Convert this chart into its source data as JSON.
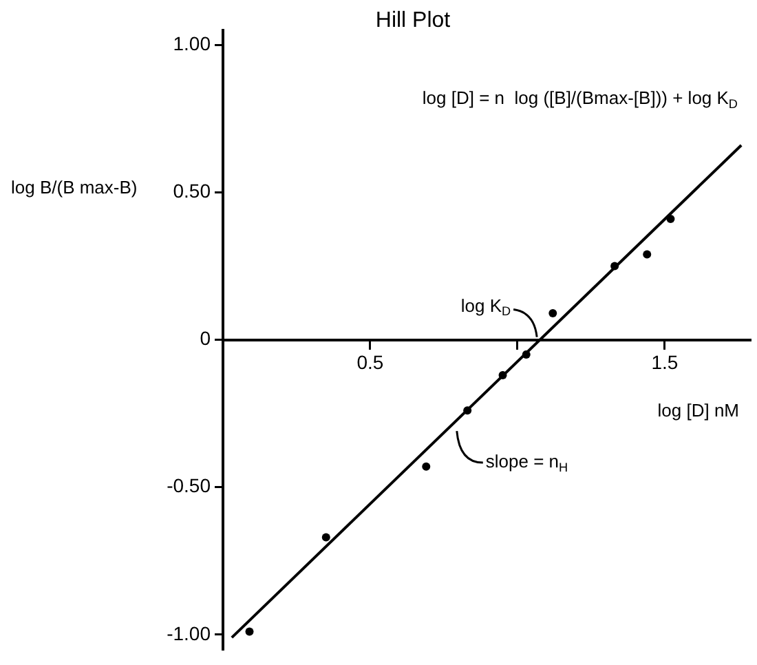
{
  "chart_data": {
    "type": "scatter",
    "title": "Hill Plot",
    "xlabel": "log [D] nM",
    "ylabel": "log B/(B max-B)",
    "annotations": [
      "log [D] = n  log ([B]/(Bmax-[B])) + log K$_{D}$",
      {
        "text": "log K$_{D}$",
        "x": 1.08,
        "y": 0
      },
      {
        "text": "slope = n$_{H}$",
        "x": 0.78,
        "y": -0.3
      }
    ],
    "series": [
      {
        "color": "#000000",
        "marker": "circle",
        "x": [
          0.09,
          0.35,
          0.69,
          0.83,
          0.95,
          1.03,
          1.12,
          1.33,
          1.44,
          1.52
        ],
        "values": [
          -0.99,
          -0.67,
          -0.43,
          -0.24,
          -0.12,
          -0.05,
          0.09,
          0.25,
          0.29,
          0.41
        ]
      },
      {
        "type": "line",
        "color": "#000000",
        "marker": "none",
        "line_style": "solid",
        "x": [
          0.03,
          1.76
        ],
        "values": [
          -1.01,
          0.66
        ]
      }
    ],
    "xlim": [
      0,
      1.79
    ],
    "ylim": [
      -1.05,
      1.05
    ],
    "xticks": [
      {
        "value": 0.5,
        "label": "0.5"
      },
      {
        "value": 1,
        "label": null
      },
      {
        "value": 1.5,
        "label": "1.5"
      }
    ],
    "yticks": [
      {
        "value": -1,
        "label": "-1.00"
      },
      {
        "value": -0.5,
        "label": "-0.50"
      },
      0,
      {
        "value": 0.5,
        "label": "0.50"
      },
      {
        "value": 1,
        "label": "1.00"
      }
    ],
    "grid": false,
    "legend": false
  }
}
